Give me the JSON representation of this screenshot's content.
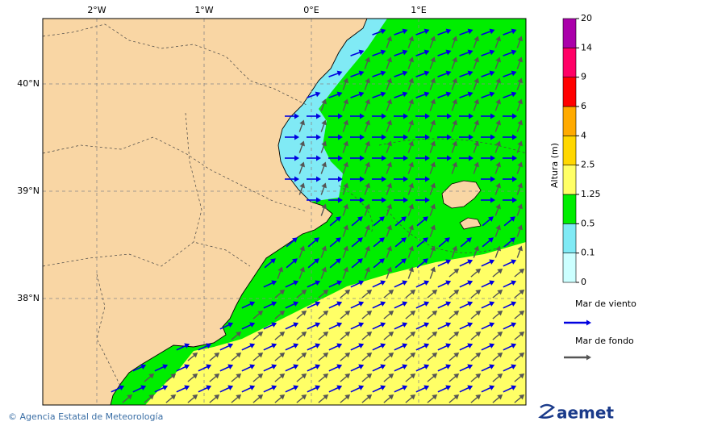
{
  "map": {
    "lon_labels": [
      "2°W",
      "1°W",
      "0°E",
      "1°E"
    ],
    "lat_labels": [
      "40°N",
      "39°N",
      "38°N"
    ]
  },
  "colorbar": {
    "title": "Altura (m)",
    "ticks": [
      0,
      0.1,
      0.5,
      1.25,
      2.5,
      4,
      6,
      9,
      14,
      20
    ],
    "colors": [
      "#ccffff",
      "#80eaf5",
      "#00ee00",
      "#ffff66",
      "#ffd700",
      "#ffaa00",
      "#ff0000",
      "#ff0066",
      "#aa00aa"
    ]
  },
  "legend": [
    {
      "label": "Mar de viento",
      "color": "#0000e0"
    },
    {
      "label": "Mar de fondo",
      "color": "#555555"
    }
  ],
  "footer": {
    "credit": "© Agencia Estatal de Meteorología",
    "logo": "aemet"
  }
}
